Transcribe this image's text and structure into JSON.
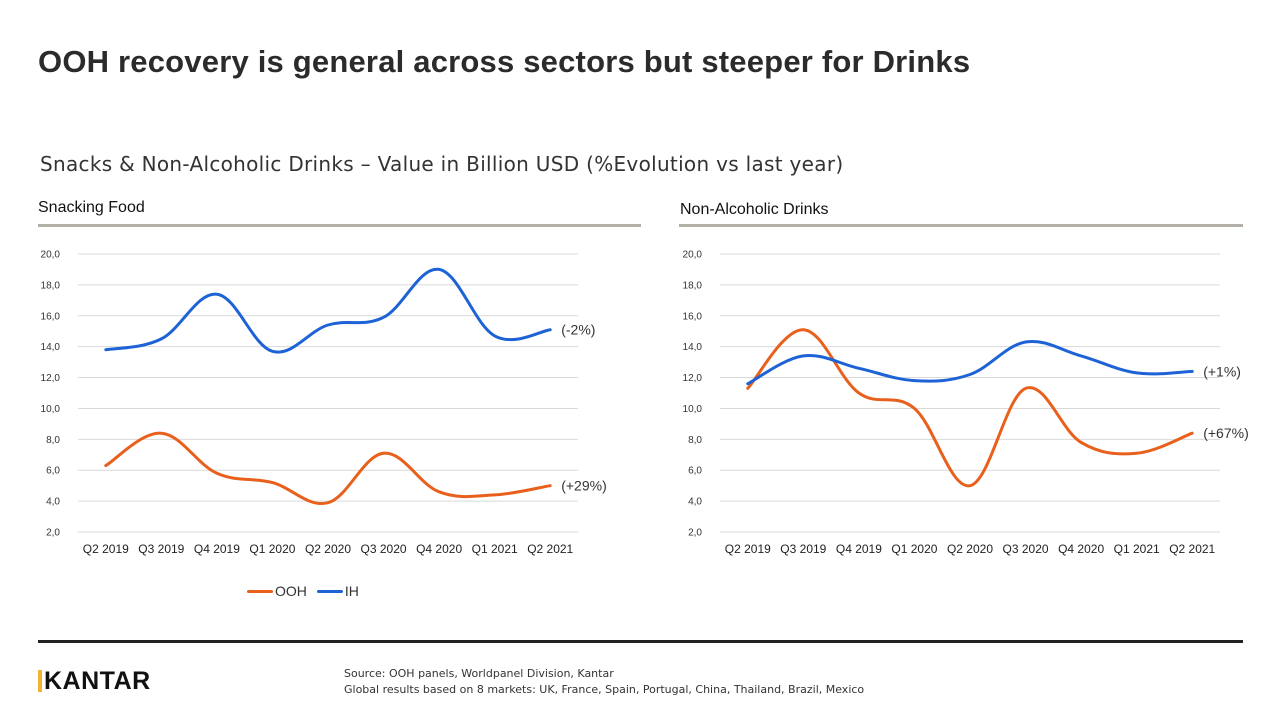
{
  "title": "OOH recovery is general across sectors but steeper for Drinks",
  "subtitle": "Snacks & Non-Alcoholic Drinks – Value in Billion USD (%Evolution vs last year)",
  "legend": {
    "ooh_label": "OOH",
    "ih_label": "IH"
  },
  "colors": {
    "ooh": "#E8601C",
    "ih": "#1E63D6",
    "grid": "#d9d9d9",
    "rule": "#b3b0a7",
    "logo_accent": "#f2b233"
  },
  "footer": {
    "logo_text": "KANTAR",
    "source_line1": "Source: OOH panels, Worldpanel Division, Kantar",
    "source_line2": "Global results based on 8 markets: UK, France, Spain, Portugal, China, Thailand, Brazil, Mexico"
  },
  "chart_data": [
    {
      "type": "line",
      "title": "Snacking Food",
      "categories": [
        "Q2 2019",
        "Q3 2019",
        "Q4 2019",
        "Q1 2020",
        "Q2 2020",
        "Q3 2020",
        "Q4 2020",
        "Q1 2021",
        "Q2 2021"
      ],
      "series": [
        {
          "name": "OOH",
          "values": [
            6.3,
            8.4,
            5.8,
            5.2,
            3.9,
            7.1,
            4.6,
            4.4,
            5.0
          ],
          "end_label": "(+29%)"
        },
        {
          "name": "IH",
          "values": [
            13.8,
            14.5,
            17.4,
            13.7,
            15.4,
            15.9,
            19.0,
            14.7,
            15.1
          ],
          "end_label": "(-2%)"
        }
      ],
      "ylim": [
        2.0,
        20.0
      ],
      "yticks": [
        "2,0",
        "4,0",
        "6,0",
        "8,0",
        "10,0",
        "12,0",
        "14,0",
        "16,0",
        "18,0",
        "20,0"
      ],
      "legend": "bottom",
      "grid": true
    },
    {
      "type": "line",
      "title": "Non-Alcoholic Drinks",
      "categories": [
        "Q2 2019",
        "Q3 2019",
        "Q4 2019",
        "Q1 2020",
        "Q2 2020",
        "Q3 2020",
        "Q4 2020",
        "Q1 2021",
        "Q2 2021"
      ],
      "series": [
        {
          "name": "OOH",
          "values": [
            11.3,
            15.1,
            11.0,
            10.0,
            5.0,
            11.3,
            7.8,
            7.1,
            8.4
          ],
          "end_label": "(+67%)"
        },
        {
          "name": "IH",
          "values": [
            11.6,
            13.4,
            12.6,
            11.8,
            12.2,
            14.3,
            13.4,
            12.3,
            12.4
          ],
          "end_label": "(+1%)"
        }
      ],
      "ylim": [
        2.0,
        20.0
      ],
      "yticks": [
        "2,0",
        "4,0",
        "6,0",
        "8,0",
        "10,0",
        "12,0",
        "14,0",
        "16,0",
        "18,0",
        "20,0"
      ],
      "legend": "none",
      "grid": true
    }
  ]
}
